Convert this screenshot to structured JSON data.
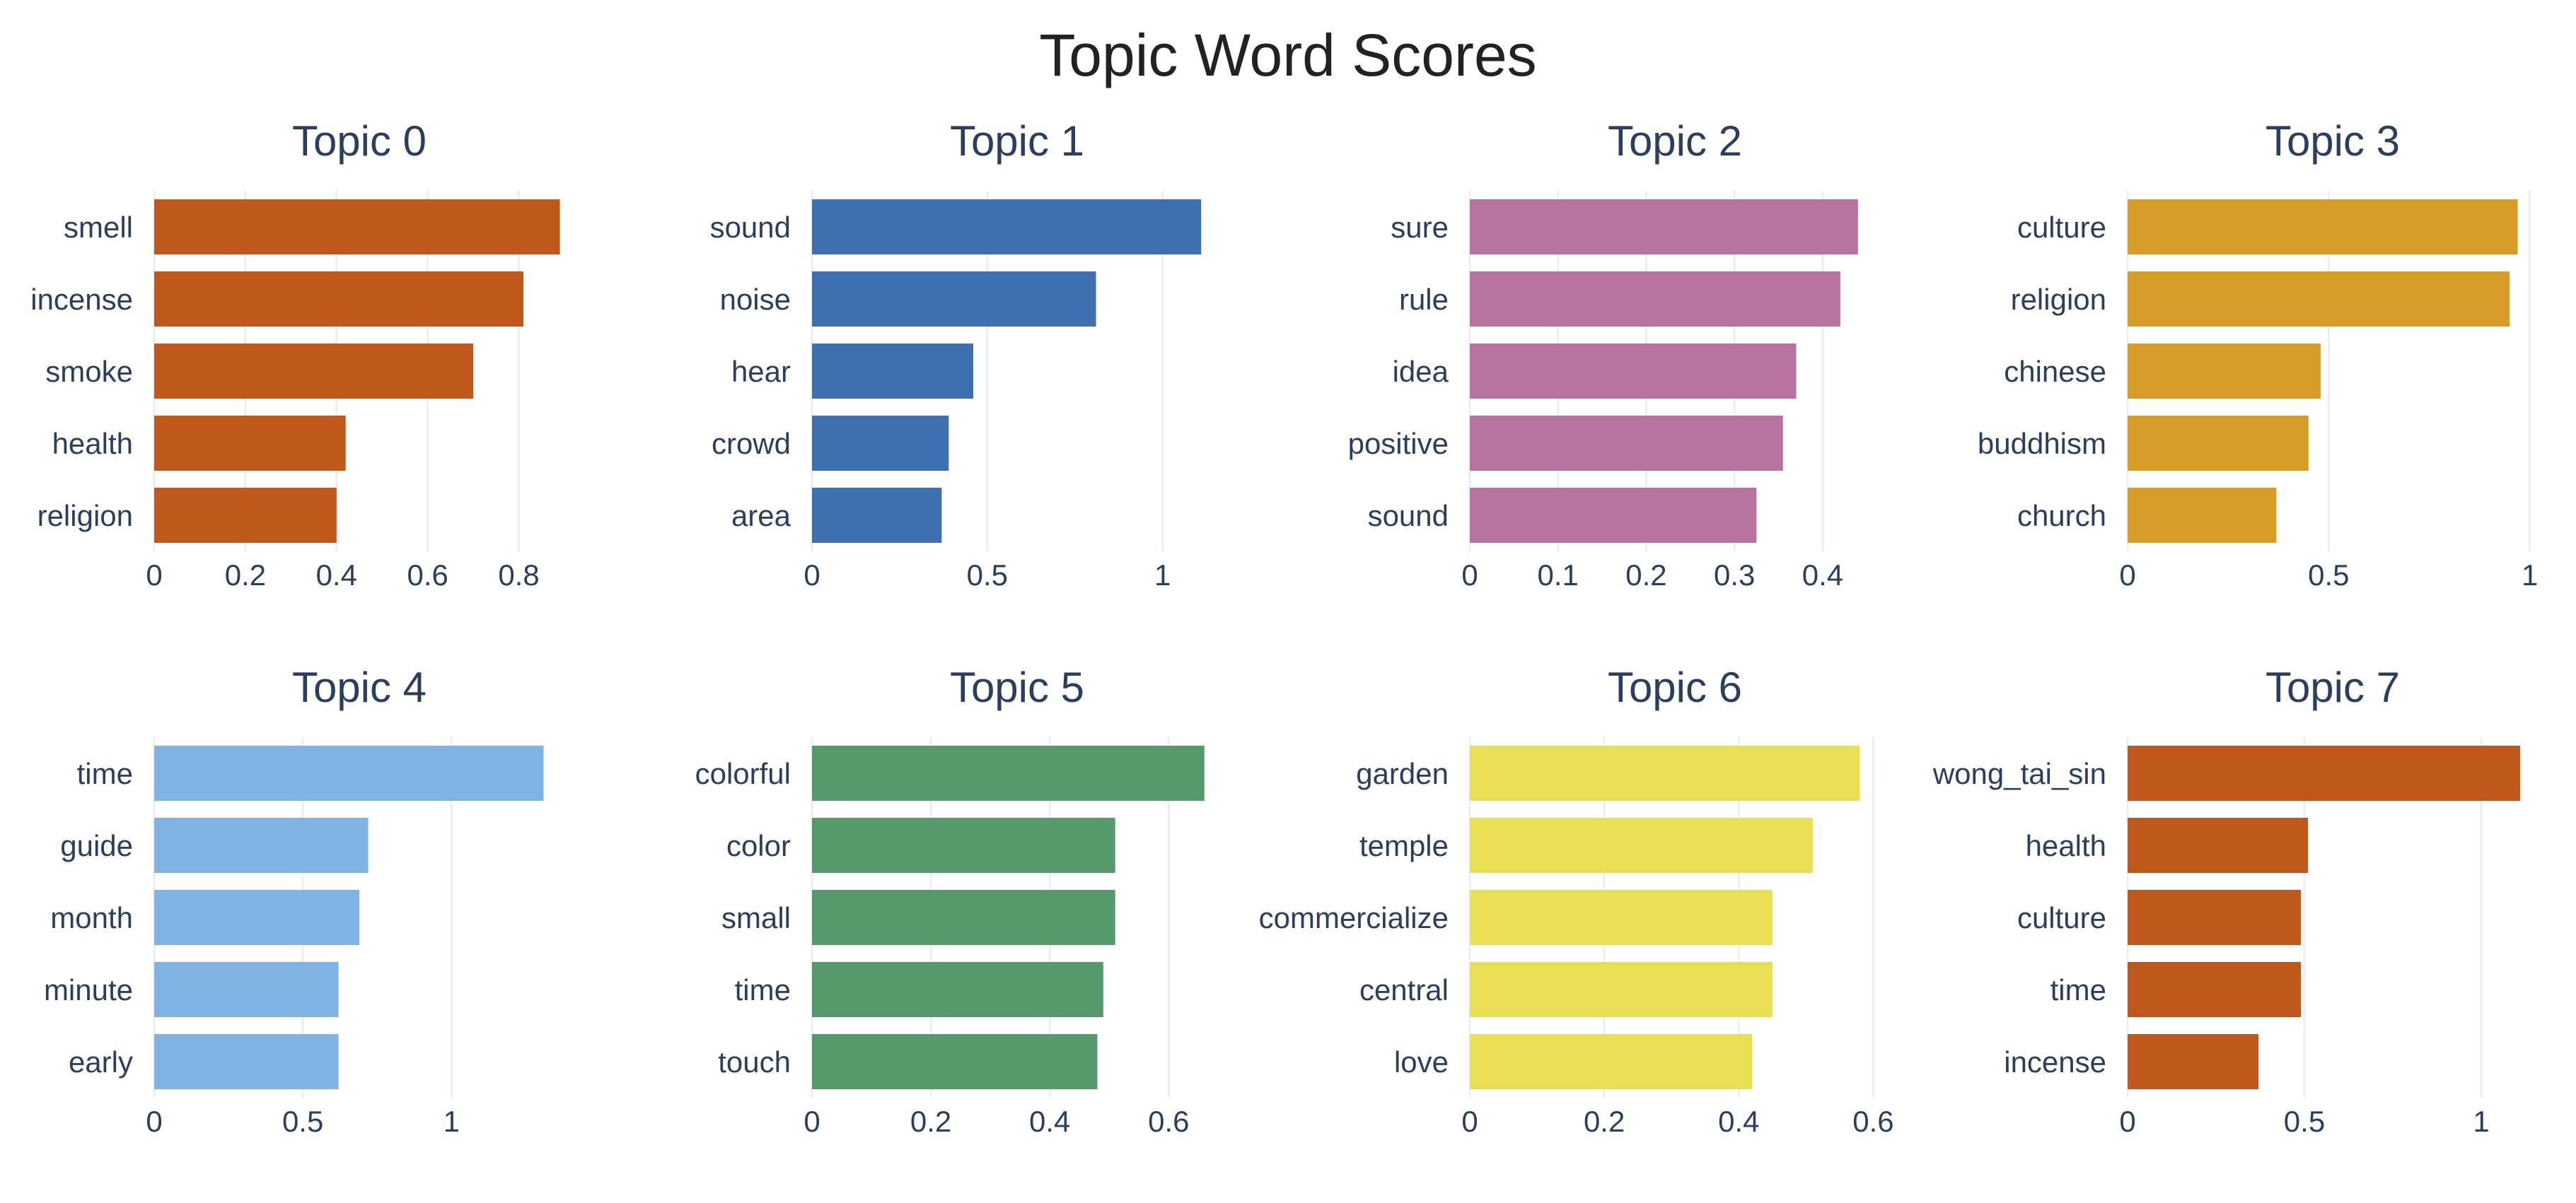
{
  "title": "Topic Word Scores",
  "chart_data": [
    {
      "type": "bar",
      "orientation": "horizontal",
      "title": "Topic 0",
      "color": "#C0571B",
      "categories": [
        "smell",
        "incense",
        "smoke",
        "health",
        "religion"
      ],
      "values": [
        0.89,
        0.81,
        0.7,
        0.42,
        0.4
      ],
      "xlim": [
        0,
        0.9
      ],
      "ticks": [
        0,
        0.2,
        0.4,
        0.6,
        0.8
      ],
      "tick_labels": [
        "0",
        "0.2",
        "0.4",
        "0.6",
        "0.8"
      ]
    },
    {
      "type": "bar",
      "orientation": "horizontal",
      "title": "Topic 1",
      "color": "#3E6FB0",
      "categories": [
        "sound",
        "noise",
        "hear",
        "crowd",
        "area"
      ],
      "values": [
        1.11,
        0.81,
        0.46,
        0.39,
        0.37
      ],
      "xlim": [
        0,
        1.17
      ],
      "ticks": [
        0,
        0.5,
        1
      ],
      "tick_labels": [
        "0",
        "0.5",
        "1"
      ]
    },
    {
      "type": "bar",
      "orientation": "horizontal",
      "title": "Topic 2",
      "color": "#B7739F",
      "categories": [
        "sure",
        "rule",
        "idea",
        "positive",
        "sound"
      ],
      "values": [
        0.44,
        0.42,
        0.37,
        0.355,
        0.325
      ],
      "xlim": [
        0,
        0.465
      ],
      "ticks": [
        0,
        0.1,
        0.2,
        0.3,
        0.4
      ],
      "tick_labels": [
        "0",
        "0.1",
        "0.2",
        "0.3",
        "0.4"
      ]
    },
    {
      "type": "bar",
      "orientation": "horizontal",
      "title": "Topic 3",
      "color": "#D79C27",
      "categories": [
        "culture",
        "religion",
        "chinese",
        "buddhism",
        "church"
      ],
      "values": [
        0.97,
        0.95,
        0.48,
        0.45,
        0.37
      ],
      "xlim": [
        0,
        1.02
      ],
      "ticks": [
        0,
        0.5,
        1
      ],
      "tick_labels": [
        "0",
        "0.5",
        "1"
      ]
    },
    {
      "type": "bar",
      "orientation": "horizontal",
      "title": "Topic 4",
      "color": "#7FB3E3",
      "categories": [
        "time",
        "guide",
        "month",
        "minute",
        "early"
      ],
      "values": [
        1.31,
        0.72,
        0.69,
        0.62,
        0.62
      ],
      "xlim": [
        0,
        1.38
      ],
      "ticks": [
        0,
        0.5,
        1
      ],
      "tick_labels": [
        "0",
        "0.5",
        "1"
      ]
    },
    {
      "type": "bar",
      "orientation": "horizontal",
      "title": "Topic 5",
      "color": "#56996A",
      "categories": [
        "colorful",
        "color",
        "small",
        "time",
        "touch"
      ],
      "values": [
        0.66,
        0.51,
        0.51,
        0.49,
        0.48
      ],
      "xlim": [
        0,
        0.69
      ],
      "ticks": [
        0,
        0.2,
        0.4,
        0.6
      ],
      "tick_labels": [
        "0",
        "0.2",
        "0.4",
        "0.6"
      ]
    },
    {
      "type": "bar",
      "orientation": "horizontal",
      "title": "Topic 6",
      "color": "#E8DF54",
      "categories": [
        "garden",
        "temple",
        "commercialize",
        "central",
        "love"
      ],
      "values": [
        0.58,
        0.51,
        0.45,
        0.45,
        0.42
      ],
      "xlim": [
        0,
        0.61
      ],
      "ticks": [
        0,
        0.2,
        0.4,
        0.6
      ],
      "tick_labels": [
        "0",
        "0.2",
        "0.4",
        "0.6"
      ]
    },
    {
      "type": "bar",
      "orientation": "horizontal",
      "title": "Topic 7",
      "color": "#C0571B",
      "categories": [
        "wong_tai_sin",
        "health",
        "culture",
        "time",
        "incense"
      ],
      "values": [
        1.11,
        0.51,
        0.49,
        0.49,
        0.37
      ],
      "xlim": [
        0,
        1.16
      ],
      "ticks": [
        0,
        0.5,
        1
      ],
      "tick_labels": [
        "0",
        "0.5",
        "1"
      ]
    }
  ]
}
